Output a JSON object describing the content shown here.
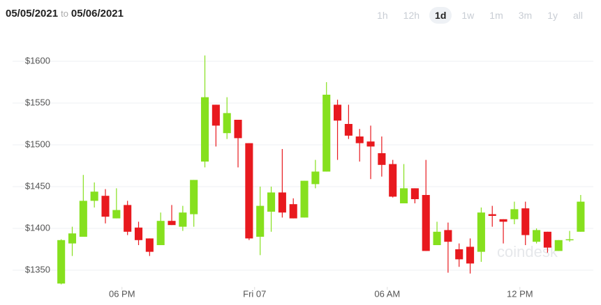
{
  "header": {
    "from": "05/05/2021",
    "to_word": "to",
    "to": "05/06/2021",
    "ranges": [
      "1h",
      "12h",
      "1d",
      "1w",
      "1m",
      "3m",
      "1y",
      "all"
    ],
    "selected": "1d"
  },
  "watermark": "coindesk",
  "chart_data": {
    "type": "candlestick",
    "x": [
      15.25,
      15.75,
      16.25,
      16.75,
      17.25,
      17.75,
      18.25,
      18.75,
      19.25,
      19.75,
      20.25,
      20.75,
      21.25,
      21.75,
      22.25,
      22.75,
      23.25,
      23.75,
      24.25,
      24.75,
      25.25,
      25.75,
      26.25,
      26.75,
      27.25,
      27.75,
      28.25,
      28.75,
      29.25,
      29.75,
      30.25,
      30.75,
      31.25,
      31.75,
      32.25,
      32.75,
      33.25,
      33.75,
      34.25,
      34.75,
      35.25,
      35.75,
      36.25,
      36.75,
      37.25,
      37.75,
      38.25,
      38.75
    ],
    "series": [
      {
        "up_color": "#86e01e",
        "down_color": "#e8191e",
        "open": [
          1334,
          1382,
          1390,
          1433,
          1439,
          1412,
          1428,
          1401,
          1388,
          1380,
          1409,
          1402,
          1417,
          1480,
          1548,
          1514,
          1530,
          1502,
          1390,
          1420,
          1443,
          1429,
          1413,
          1453,
          1468,
          1548,
          1525,
          1510,
          1504,
          1490,
          1477,
          1430,
          1448,
          1440,
          1380,
          1398,
          1375,
          1378,
          1372,
          1417,
          1411,
          1411,
          1424,
          1384,
          1396,
          1373,
          1386,
          1396
        ],
        "high": [
          1387,
          1402,
          1464,
          1455,
          1447,
          1448,
          1433,
          1408,
          1388,
          1419,
          1428,
          1427,
          1458,
          1607,
          1548,
          1557,
          1530,
          1502,
          1450,
          1450,
          1495,
          1436,
          1457,
          1482,
          1575,
          1554,
          1548,
          1519,
          1523,
          1510,
          1482,
          1477,
          1448,
          1482,
          1408,
          1407,
          1382,
          1388,
          1425,
          1427,
          1411,
          1432,
          1432,
          1400,
          1396,
          1386,
          1397,
          1440
        ],
        "low": [
          1333,
          1367,
          1390,
          1425,
          1406,
          1412,
          1392,
          1380,
          1367,
          1380,
          1404,
          1397,
          1402,
          1473,
          1498,
          1507,
          1473,
          1386,
          1368,
          1396,
          1413,
          1412,
          1413,
          1448,
          1468,
          1482,
          1507,
          1480,
          1459,
          1462,
          1437,
          1430,
          1430,
          1373,
          1380,
          1347,
          1354,
          1346,
          1360,
          1402,
          1382,
          1405,
          1380,
          1382,
          1371,
          1373,
          1384,
          1396
        ],
        "close": [
          1386,
          1394,
          1433,
          1444,
          1414,
          1422,
          1396,
          1386,
          1372,
          1409,
          1404,
          1419,
          1458,
          1557,
          1523,
          1538,
          1508,
          1388,
          1427,
          1443,
          1419,
          1412,
          1457,
          1468,
          1560,
          1529,
          1511,
          1502,
          1498,
          1476,
          1438,
          1448,
          1435,
          1373,
          1396,
          1384,
          1363,
          1358,
          1419,
          1415,
          1408,
          1423,
          1392,
          1398,
          1377,
          1386,
          1387,
          1432
        ]
      }
    ],
    "xlim": [
      14.85,
      39.1
    ],
    "xticks": [
      {
        "value": 18,
        "label": "06 PM"
      },
      {
        "value": 24,
        "label": "Fri 07"
      },
      {
        "value": 30,
        "label": "06 AM"
      },
      {
        "value": 36,
        "label": "12 PM"
      }
    ],
    "ylim": [
      1332,
      1625
    ],
    "yticks": [
      {
        "value": 1350,
        "label": "$1350"
      },
      {
        "value": 1400,
        "label": "$1400"
      },
      {
        "value": 1450,
        "label": "$1450"
      },
      {
        "value": 1500,
        "label": "$1500"
      },
      {
        "value": 1550,
        "label": "$1550"
      },
      {
        "value": 1600,
        "label": "$1600"
      }
    ],
    "grid": true
  }
}
